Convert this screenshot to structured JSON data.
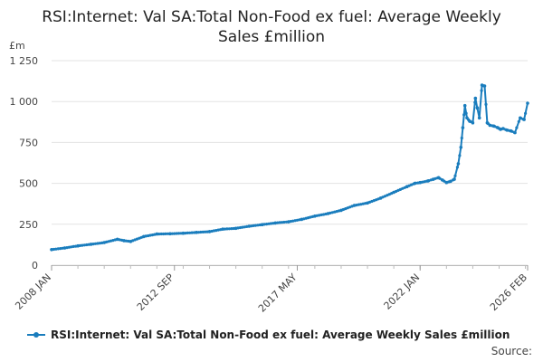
{
  "chart_data": {
    "type": "line",
    "title": "RSI:Internet: Val SA:Total Non-Food ex fuel: Average Weekly Sales £million",
    "y_unit": "£m",
    "ylim": [
      0,
      1250
    ],
    "y_ticks": [
      0,
      250,
      500,
      750,
      1000,
      1250
    ],
    "y_tick_labels": [
      "0",
      "250",
      "500",
      "750",
      "1 000",
      "1 250"
    ],
    "x_ticks": [
      {
        "label": "2008 JAN",
        "t": 2008.0
      },
      {
        "label": "2012 SEP",
        "t": 2012.667
      },
      {
        "label": "2017 MAY",
        "t": 2017.333
      },
      {
        "label": "2022 JAN",
        "t": 2022.0
      },
      {
        "label": "2026 FEB",
        "t": 2026.083
      }
    ],
    "xlim": [
      2008.0,
      2026.083
    ],
    "series": [
      {
        "name": "RSI:Internet: Val SA:Total Non-Food ex fuel: Average Weekly Sales £million",
        "color": "#1a7dbd",
        "points": [
          [
            2008.0,
            95
          ],
          [
            2008.5,
            105
          ],
          [
            2009.0,
            118
          ],
          [
            2009.5,
            128
          ],
          [
            2010.0,
            138
          ],
          [
            2010.5,
            158
          ],
          [
            2010.75,
            150
          ],
          [
            2011.0,
            145
          ],
          [
            2011.5,
            175
          ],
          [
            2012.0,
            190
          ],
          [
            2012.5,
            192
          ],
          [
            2013.0,
            195
          ],
          [
            2013.5,
            200
          ],
          [
            2014.0,
            205
          ],
          [
            2014.5,
            220
          ],
          [
            2015.0,
            225
          ],
          [
            2015.5,
            238
          ],
          [
            2016.0,
            248
          ],
          [
            2016.5,
            258
          ],
          [
            2017.0,
            265
          ],
          [
            2017.5,
            280
          ],
          [
            2018.0,
            300
          ],
          [
            2018.5,
            315
          ],
          [
            2019.0,
            335
          ],
          [
            2019.5,
            365
          ],
          [
            2020.0,
            380
          ],
          [
            2020.5,
            410
          ],
          [
            2021.0,
            445
          ],
          [
            2021.5,
            480
          ],
          [
            2021.8,
            500
          ],
          [
            2022.0,
            505
          ],
          [
            2022.3,
            515
          ],
          [
            2022.5,
            525
          ],
          [
            2022.7,
            535
          ],
          [
            2022.85,
            520
          ],
          [
            2023.0,
            505
          ],
          [
            2023.15,
            512
          ],
          [
            2023.3,
            525
          ],
          [
            2023.45,
            620
          ],
          [
            2023.55,
            720
          ],
          [
            2023.62,
            840
          ],
          [
            2023.7,
            975
          ],
          [
            2023.78,
            900
          ],
          [
            2023.88,
            880
          ],
          [
            2024.0,
            870
          ],
          [
            2024.1,
            1020
          ],
          [
            2024.17,
            960
          ],
          [
            2024.25,
            900
          ],
          [
            2024.35,
            1100
          ],
          [
            2024.45,
            1095
          ],
          [
            2024.55,
            870
          ],
          [
            2024.65,
            855
          ],
          [
            2024.8,
            850
          ],
          [
            2024.95,
            840
          ],
          [
            2025.05,
            830
          ],
          [
            2025.15,
            835
          ],
          [
            2025.3,
            825
          ],
          [
            2025.45,
            820
          ],
          [
            2025.6,
            810
          ],
          [
            2025.8,
            900
          ],
          [
            2025.95,
            890
          ],
          [
            2026.083,
            990
          ]
        ]
      }
    ],
    "source_label": "Source:"
  }
}
